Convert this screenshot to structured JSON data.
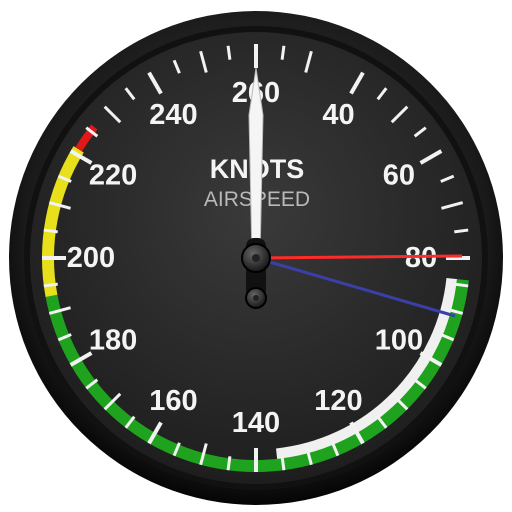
{
  "instrument": {
    "title": "KNOTS",
    "subtitle": "AIRSPEED",
    "scale_labels": [
      "40",
      "60",
      "80",
      "100",
      "120",
      "140",
      "160",
      "180",
      "200",
      "220",
      "240",
      "260"
    ],
    "needle_icon": "needle-icon",
    "colors": {
      "white_arc": "#f0f0f0",
      "green_arc": "#1fa31f",
      "yellow_arc": "#e8e01a",
      "red_line": "#e01818",
      "bezel": "#1c1c1c",
      "face": "#2a2a2a",
      "red_bug": "#ff2a2a",
      "blue_bug": "#3b3fa8"
    }
  }
}
